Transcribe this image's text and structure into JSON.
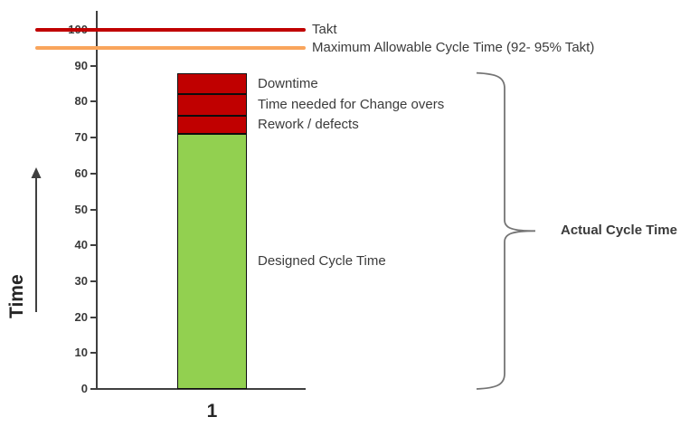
{
  "colors": {
    "bar_green": "#92D050",
    "bar_red": "#C00000",
    "takt_line": "#C00000",
    "max_cycle_line": "#F9A55C",
    "axis": "#3F3F3F",
    "text": "#3B3B3B",
    "brace": "#757575"
  },
  "chart_data": {
    "type": "bar",
    "stacked": true,
    "categories": [
      "1"
    ],
    "series": [
      {
        "name": "Designed Cycle Time",
        "values": [
          71
        ],
        "color": "#92D050"
      },
      {
        "name": "Rework / defects",
        "values": [
          5
        ],
        "color": "#C00000"
      },
      {
        "name": "Time needed for Change overs",
        "values": [
          6
        ],
        "color": "#C00000"
      },
      {
        "name": "Downtime",
        "values": [
          6
        ],
        "color": "#C00000"
      }
    ],
    "ref_lines": [
      {
        "label": "Takt",
        "value": 100,
        "color": "#C00000"
      },
      {
        "label": "Maximum Allowable Cycle Time (92- 95% Takt)",
        "value": 95,
        "color": "#F9A55C"
      }
    ],
    "annotations": [
      {
        "type": "brace",
        "label": "Actual Cycle Time",
        "from": 0,
        "to": 88
      }
    ],
    "title": "",
    "xlabel": "",
    "ylabel": "Time",
    "ylim": [
      0,
      100
    ],
    "ytick_step": 10,
    "grid": false,
    "legend_position": "right-of-lines"
  }
}
